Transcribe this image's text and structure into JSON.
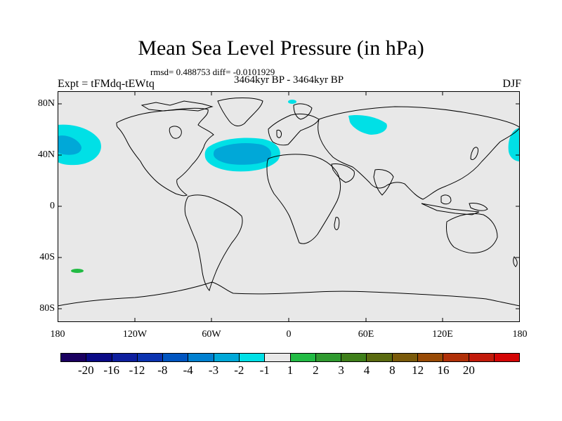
{
  "title": "Mean Sea Level Pressure (in hPa)",
  "stats": "rmsd= 0.488753 diff= -0.0101929",
  "period": "3464kyr BP - 3464kyr BP",
  "experiment": "Expt = tFMdq-tEWtq",
  "season": "DJF",
  "colors": {
    "land_outline": "#000000",
    "background": "#e8e8e8",
    "anomaly_light_cyan": "#00e0e6",
    "anomaly_blue": "#00a8d8",
    "anomaly_green": "#22bb44"
  },
  "lat_labels": [
    "80N",
    "40N",
    "0",
    "40S",
    "80S"
  ],
  "lon_labels": [
    "180",
    "120W",
    "60W",
    "0",
    "60E",
    "120E",
    "180"
  ],
  "colorbar": {
    "colors": [
      "#1a0060",
      "#0a0a86",
      "#0e1f9e",
      "#0b33b0",
      "#0055c0",
      "#0080d0",
      "#00a8d8",
      "#00e0e6",
      "#e8e8e8",
      "#22bb44",
      "#2f9a2f",
      "#3f7f1a",
      "#5a6a10",
      "#7a5a0a",
      "#984a05",
      "#b03008",
      "#c21a0a",
      "#d40505"
    ],
    "labels": [
      "-20",
      "-16",
      "-12",
      "-8",
      "-4",
      "-3",
      "-2",
      "-1",
      "1",
      "2",
      "3",
      "4",
      "8",
      "12",
      "16",
      "20"
    ]
  }
}
